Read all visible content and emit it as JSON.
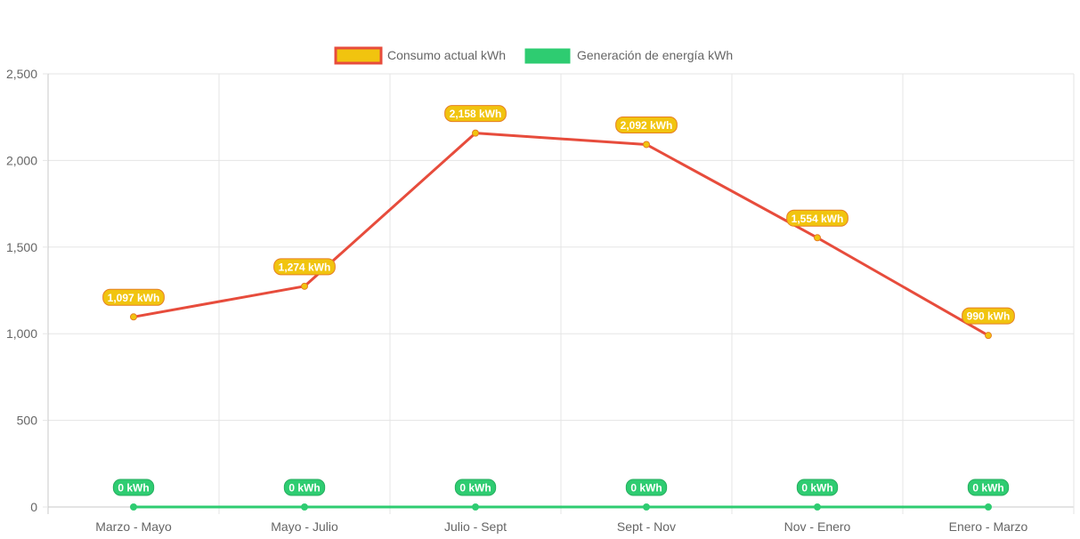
{
  "chart_data": {
    "type": "line",
    "categories": [
      "Marzo - Mayo",
      "Mayo - Julio",
      "Julio - Sept",
      "Sept - Nov",
      "Nov - Enero",
      "Enero - Marzo"
    ],
    "series": [
      {
        "name": "Consumo actual kWh",
        "values": [
          1097,
          1274,
          2158,
          2092,
          1554,
          990
        ],
        "labels": [
          "1,097 kWh",
          "1,274 kWh",
          "2,158 kWh",
          "2,092 kWh",
          "1,554 kWh",
          "990 kWh"
        ],
        "line_color": "#e74c3c",
        "fill_color": "#f1c40f"
      },
      {
        "name": "Generación de energía kWh",
        "values": [
          0,
          0,
          0,
          0,
          0,
          0
        ],
        "labels": [
          "0 kWh",
          "0 kWh",
          "0 kWh",
          "0 kWh",
          "0 kWh",
          "0 kWh"
        ],
        "line_color": "#2ecc71",
        "fill_color": "#2ecc71"
      }
    ],
    "yticks": [
      "0",
      "500",
      "1,000",
      "1,500",
      "2,000",
      "2,500"
    ],
    "ylim": [
      0,
      2500
    ],
    "title": "",
    "xlabel": "",
    "ylabel": "",
    "grid": true,
    "legend_position": "top-center"
  }
}
